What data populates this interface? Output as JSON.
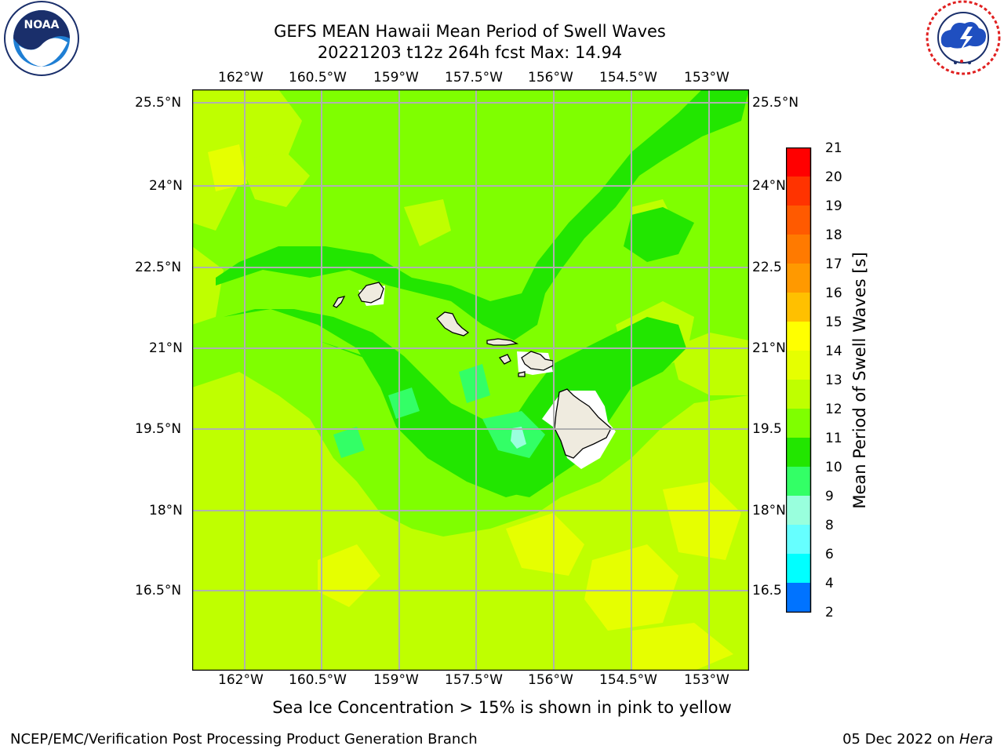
{
  "header": {
    "title_line1": "GEFS MEAN Hawaii Mean Period of Swell Waves",
    "title_line2": "20221203 t12z 264h fcst   Max: 14.94"
  },
  "logos": {
    "noaa": {
      "text": "NOAA",
      "ring_text": "NATIONAL OCEANIC AND ATMOSPHERIC ADMINISTRATION · U.S. DEPARTMENT OF COMMERCE"
    },
    "nws": {
      "ring_text": "NATIONAL WEATHER SERVICE"
    }
  },
  "map": {
    "lon_ticks": [
      "162°W",
      "160.5°W",
      "159°W",
      "157.5°W",
      "156°W",
      "154.5°W",
      "153°W"
    ],
    "lat_ticks_left": [
      "25.5°N",
      "24°N",
      "22.5°N",
      "21°N",
      "19.5°N",
      "18°N",
      "16.5°N"
    ],
    "lat_ticks_right": [
      "25.5°N",
      "24°N",
      "22.5",
      "21°N",
      "19.5",
      "18°N",
      "16.5"
    ],
    "grid": true,
    "field_color": "#7fff00",
    "land_color": "#efebdf"
  },
  "colorbar": {
    "label": "Mean Period of Swell Waves [s]",
    "ticks": [
      "21",
      "20",
      "19",
      "18",
      "17",
      "16",
      "15",
      "14",
      "13",
      "12",
      "11",
      "10",
      "9",
      "8",
      "6",
      "4",
      "2"
    ],
    "colors_top_to_bottom": [
      "#ff0000",
      "#ff3300",
      "#ff5a00",
      "#ff7a00",
      "#ff9900",
      "#ffc000",
      "#ffff00",
      "#e6ff00",
      "#bfff00",
      "#7fff00",
      "#22e600",
      "#33ff66",
      "#99ffdd",
      "#66ffff",
      "#00ffff",
      "#0073ff",
      "#0000ff"
    ]
  },
  "caption": "Sea Ice Concentration > 15% is shown in pink to yellow",
  "footer": {
    "left": "NCEP/EMC/Verification Post Processing Product Generation Branch",
    "right_date": "05 Dec 2022 on ",
    "right_host": "Hera"
  }
}
